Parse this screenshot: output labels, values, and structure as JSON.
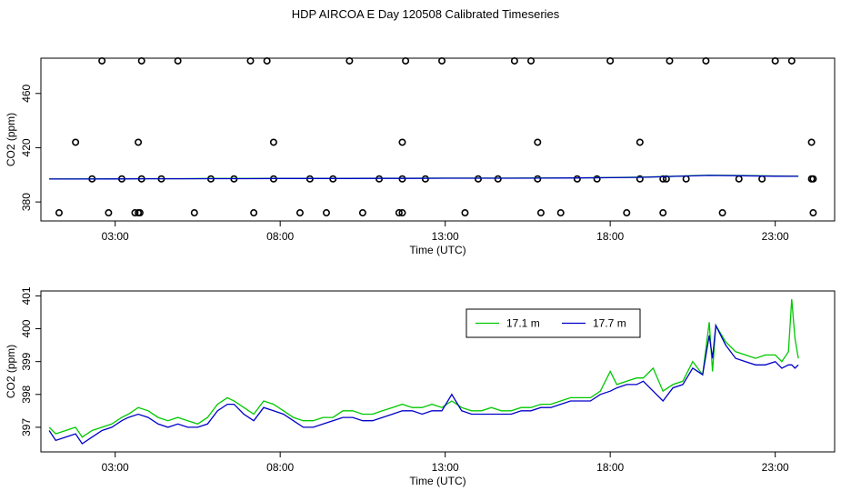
{
  "title": "HDP AIRCOA E  Day 120508  Calibrated Timeseries",
  "chart_data": [
    {
      "type": "scatter",
      "xlabel": "Time (UTC)",
      "ylabel": "CO2 (ppm)",
      "xticks": [
        "03:00",
        "08:00",
        "13:00",
        "18:00",
        "23:00"
      ],
      "yticks": [
        "380",
        "420",
        "460"
      ],
      "xlim": [
        0.75,
        24.8
      ],
      "ylim": [
        366,
        486
      ],
      "series": [
        {
          "style": "open-circles",
          "color": "#000000",
          "x": [
            1.3,
            2.8,
            3.6,
            3.7,
            3.75,
            5.4,
            7.2,
            8.6,
            9.4,
            10.5,
            11.6,
            11.7,
            13.6,
            15.9,
            16.5,
            18.5,
            19.6,
            21.4,
            24.15,
            2.3,
            3.2,
            3.8,
            4.4,
            5.9,
            6.6,
            7.8,
            8.9,
            9.6,
            11.0,
            11.7,
            12.4,
            14.0,
            14.6,
            15.8,
            17.0,
            17.6,
            18.9,
            19.6,
            19.7,
            20.3,
            21.9,
            22.6,
            24.1,
            24.15,
            1.8,
            3.7,
            7.8,
            11.7,
            15.8,
            18.9,
            24.1,
            2.6,
            3.8,
            4.9,
            7.1,
            7.6,
            10.1,
            11.8,
            12.9,
            15.1,
            15.6,
            18.0,
            19.8,
            20.9,
            23.0,
            23.5
          ],
          "y": [
            372,
            372,
            372,
            372,
            372,
            372,
            372,
            372,
            372,
            372,
            372,
            372,
            372,
            372,
            372,
            372,
            372,
            372,
            372,
            397,
            397,
            397,
            397,
            397,
            397,
            397,
            397,
            397,
            397,
            397,
            397,
            397,
            397,
            397,
            397,
            397,
            397,
            397,
            397,
            397,
            397,
            397,
            397,
            397,
            424,
            424,
            424,
            424,
            424,
            424,
            424,
            484,
            484,
            484,
            484,
            484,
            484,
            484,
            484,
            484,
            484,
            484,
            484,
            484,
            484,
            484
          ]
        },
        {
          "name": "17.1 m",
          "style": "line",
          "color": "#00c800",
          "x": [
            1.0,
            2.0,
            3.0,
            4.0,
            5.0,
            6.0,
            7.0,
            8.0,
            9.0,
            10.0,
            11.0,
            12.0,
            13.0,
            14.0,
            15.0,
            16.0,
            17.0,
            18.0,
            19.0,
            20.0,
            21.0,
            22.0,
            23.0,
            23.7
          ],
          "y": [
            397.0,
            397.0,
            397.1,
            397.2,
            397.2,
            397.3,
            397.3,
            397.4,
            397.4,
            397.4,
            397.5,
            397.5,
            397.6,
            397.6,
            397.6,
            397.7,
            397.8,
            398.0,
            398.3,
            399.0,
            399.8,
            399.5,
            399.2,
            399.0
          ]
        },
        {
          "name": "17.7 m",
          "style": "line",
          "color": "#0000c8",
          "x": [
            1.0,
            2.0,
            3.0,
            4.0,
            5.0,
            6.0,
            7.0,
            8.0,
            9.0,
            10.0,
            11.0,
            12.0,
            13.0,
            14.0,
            15.0,
            16.0,
            17.0,
            18.0,
            19.0,
            20.0,
            21.0,
            22.0,
            23.0,
            23.7
          ],
          "y": [
            396.9,
            396.9,
            397.0,
            397.1,
            397.1,
            397.2,
            397.2,
            397.3,
            397.3,
            397.3,
            397.4,
            397.4,
            397.5,
            397.5,
            397.5,
            397.6,
            397.7,
            397.9,
            398.2,
            398.9,
            399.6,
            399.3,
            399.0,
            398.9
          ]
        }
      ]
    },
    {
      "type": "line",
      "xlabel": "Time (UTC)",
      "ylabel": "CO2 (ppm)",
      "xticks": [
        "03:00",
        "08:00",
        "13:00",
        "18:00",
        "23:00"
      ],
      "yticks": [
        "397",
        "398",
        "399",
        "400",
        "401"
      ],
      "xlim": [
        0.75,
        24.8
      ],
      "ylim": [
        396.25,
        401.15
      ],
      "legend": {
        "position": "top-right",
        "entries": [
          "17.1 m",
          "17.7 m"
        ]
      },
      "series": [
        {
          "name": "17.1 m",
          "color": "#00c800",
          "x": [
            1.0,
            1.2,
            1.5,
            1.8,
            2.0,
            2.3,
            2.6,
            2.9,
            3.2,
            3.4,
            3.7,
            4.0,
            4.3,
            4.6,
            4.9,
            5.2,
            5.5,
            5.8,
            6.1,
            6.4,
            6.6,
            6.9,
            7.2,
            7.5,
            7.8,
            8.1,
            8.4,
            8.7,
            9.0,
            9.3,
            9.6,
            9.9,
            10.2,
            10.5,
            10.8,
            11.1,
            11.4,
            11.7,
            12.0,
            12.3,
            12.6,
            12.9,
            13.2,
            13.5,
            13.8,
            14.1,
            14.4,
            14.7,
            15.0,
            15.3,
            15.6,
            15.9,
            16.2,
            16.5,
            16.8,
            17.1,
            17.4,
            17.7,
            18.0,
            18.2,
            18.5,
            18.8,
            19.0,
            19.3,
            19.6,
            19.9,
            20.2,
            20.5,
            20.8,
            21.0,
            21.1,
            21.2,
            21.5,
            21.8,
            22.1,
            22.4,
            22.7,
            23.0,
            23.2,
            23.4,
            23.5,
            23.6,
            23.7
          ],
          "y": [
            397.0,
            396.8,
            396.9,
            397.0,
            396.7,
            396.9,
            397.0,
            397.1,
            397.3,
            397.4,
            397.6,
            397.5,
            397.3,
            397.2,
            397.3,
            397.2,
            397.1,
            397.3,
            397.7,
            397.9,
            397.8,
            397.6,
            397.4,
            397.8,
            397.7,
            397.5,
            397.3,
            397.2,
            397.2,
            397.3,
            397.3,
            397.5,
            397.5,
            397.4,
            397.4,
            397.5,
            397.6,
            397.7,
            397.6,
            397.6,
            397.7,
            397.6,
            397.8,
            397.6,
            397.5,
            397.5,
            397.6,
            397.5,
            397.5,
            397.6,
            397.6,
            397.7,
            397.7,
            397.8,
            397.9,
            397.9,
            397.9,
            398.1,
            398.7,
            398.3,
            398.4,
            398.5,
            398.5,
            398.8,
            398.1,
            398.3,
            398.4,
            399.0,
            398.6,
            400.2,
            398.7,
            400.1,
            399.6,
            399.3,
            399.2,
            399.1,
            399.2,
            399.2,
            399.0,
            399.3,
            400.9,
            399.7,
            399.1
          ]
        },
        {
          "name": "17.7 m",
          "color": "#0000c8",
          "x": [
            1.0,
            1.2,
            1.5,
            1.8,
            2.0,
            2.3,
            2.6,
            2.9,
            3.2,
            3.4,
            3.7,
            4.0,
            4.3,
            4.6,
            4.9,
            5.2,
            5.5,
            5.8,
            6.1,
            6.4,
            6.6,
            6.9,
            7.2,
            7.5,
            7.8,
            8.1,
            8.4,
            8.7,
            9.0,
            9.3,
            9.6,
            9.9,
            10.2,
            10.5,
            10.8,
            11.1,
            11.4,
            11.7,
            12.0,
            12.3,
            12.6,
            12.9,
            13.2,
            13.5,
            13.8,
            14.1,
            14.4,
            14.7,
            15.0,
            15.3,
            15.6,
            15.9,
            16.2,
            16.5,
            16.8,
            17.1,
            17.4,
            17.7,
            18.0,
            18.2,
            18.5,
            18.8,
            19.0,
            19.3,
            19.6,
            19.9,
            20.2,
            20.5,
            20.8,
            21.0,
            21.1,
            21.2,
            21.5,
            21.8,
            22.1,
            22.4,
            22.7,
            23.0,
            23.2,
            23.4,
            23.5,
            23.6,
            23.7
          ],
          "y": [
            396.9,
            396.6,
            396.7,
            396.8,
            396.5,
            396.7,
            396.9,
            397.0,
            397.2,
            397.3,
            397.4,
            397.3,
            397.1,
            397.0,
            397.1,
            397.0,
            397.0,
            397.1,
            397.5,
            397.7,
            397.7,
            397.4,
            397.2,
            397.6,
            397.5,
            397.4,
            397.2,
            397.0,
            397.0,
            397.1,
            397.2,
            397.3,
            397.3,
            397.2,
            397.2,
            397.3,
            397.4,
            397.5,
            397.5,
            397.4,
            397.5,
            397.5,
            398.0,
            397.5,
            397.4,
            397.4,
            397.4,
            397.4,
            397.4,
            397.5,
            397.5,
            397.6,
            397.6,
            397.7,
            397.8,
            397.8,
            397.8,
            398.0,
            398.1,
            398.2,
            398.3,
            398.3,
            398.4,
            398.1,
            397.8,
            398.2,
            398.3,
            398.8,
            398.6,
            399.8,
            399.1,
            400.1,
            399.5,
            399.1,
            399.0,
            398.9,
            398.9,
            399.0,
            398.8,
            398.9,
            398.9,
            398.8,
            398.9
          ]
        }
      ]
    }
  ]
}
